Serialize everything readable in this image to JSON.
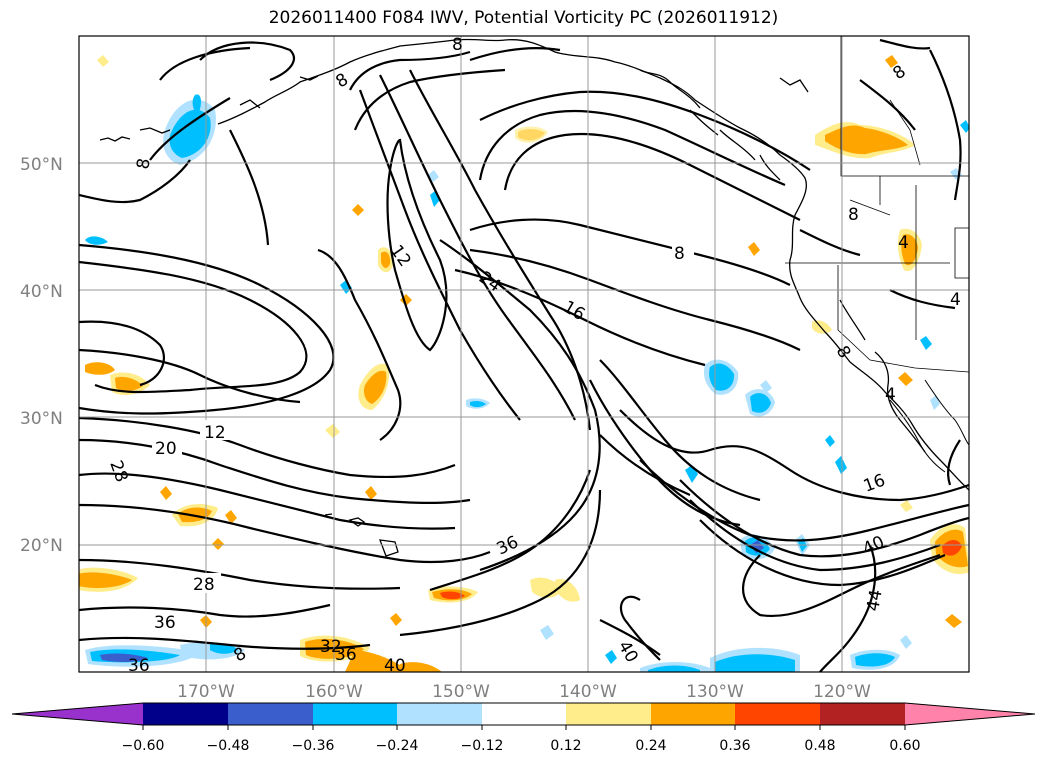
{
  "title": "2026011400 F084 IWV, Potential Vorticity PC (2026011912)",
  "lat_labels": [
    "50°N",
    "40°N",
    "30°N",
    "20°N"
  ],
  "lon_labels": [
    "170°W",
    "160°W",
    "150°W",
    "140°W",
    "130°W",
    "120°W"
  ],
  "contour_labels": [
    "8",
    "8",
    "8",
    "8",
    "12",
    "12",
    "16",
    "16",
    "20",
    "24",
    "28",
    "28",
    "36",
    "36",
    "36",
    "40",
    "40",
    "44",
    "4",
    "4",
    "4",
    "4",
    "36",
    "32",
    "36",
    "40"
  ],
  "colorbar": {
    "ticks": [
      "−0.60",
      "−0.48",
      "−0.36",
      "−0.24",
      "−0.12",
      "0.12",
      "0.24",
      "0.36",
      "0.48",
      "0.60"
    ],
    "colors": [
      "#9932cc",
      "#00008b",
      "#3a5fcd",
      "#00bfff",
      "#b0e2ff",
      "#ffffff",
      "#ffec8b",
      "#ffa500",
      "#ff4500",
      "#b22222",
      "#ff82ab"
    ]
  }
}
